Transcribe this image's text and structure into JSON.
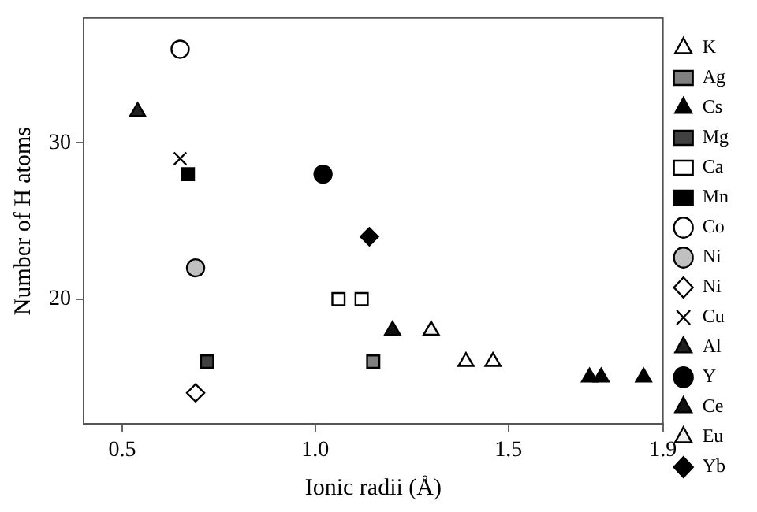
{
  "chart_data": {
    "type": "scatter",
    "xlabel": "Ionic radii (Å)",
    "ylabel": "Number of H atoms",
    "xlim": [
      0.4,
      1.9
    ],
    "xticks": [
      {
        "value": 0.5,
        "label": "0.5"
      },
      {
        "value": 1.0,
        "label": "1.0"
      },
      {
        "value": 1.5,
        "label": "1.5"
      },
      {
        "value": 1.9,
        "label": "1.9"
      }
    ],
    "ylim": [
      12,
      38
    ],
    "yticks": [
      20,
      30
    ],
    "grid": false,
    "legend": "right",
    "series": [
      {
        "name": "K",
        "marker": "triangle",
        "color": "#ffffff",
        "x": [
          1.39,
          1.46
        ],
        "values": [
          16,
          16
        ]
      },
      {
        "name": "Ag",
        "marker": "square",
        "color": "#808080",
        "x": [
          1.15
        ],
        "values": [
          16
        ]
      },
      {
        "name": "Cs",
        "marker": "triangle",
        "color": "#000000",
        "x": [
          1.71,
          1.74,
          1.85
        ],
        "values": [
          15,
          15,
          15
        ]
      },
      {
        "name": "Mg",
        "marker": "square",
        "color": "#404040",
        "x": [
          0.72
        ],
        "values": [
          16
        ]
      },
      {
        "name": "Ca",
        "marker": "square",
        "color": "#ffffff",
        "x": [
          1.06,
          1.12
        ],
        "values": [
          20,
          20
        ]
      },
      {
        "name": "Mn",
        "marker": "square",
        "color": "#000000",
        "x": [
          0.67
        ],
        "values": [
          28
        ]
      },
      {
        "name": "Co",
        "marker": "circle",
        "color": "#ffffff",
        "x": [
          0.65
        ],
        "values": [
          36
        ]
      },
      {
        "name": "Ni",
        "marker": "circle",
        "color": "#c0c0c0",
        "x": [
          0.69
        ],
        "values": [
          22
        ]
      },
      {
        "name": "Ni",
        "marker": "diamond",
        "color": "#ffffff",
        "x": [
          0.69
        ],
        "values": [
          14
        ]
      },
      {
        "name": "Cu",
        "marker": "cross",
        "color": "#000000",
        "x": [
          0.65
        ],
        "values": [
          29
        ]
      },
      {
        "name": "Al",
        "marker": "triangle",
        "color": "#202020",
        "x": [
          0.54
        ],
        "values": [
          32
        ]
      },
      {
        "name": "Y",
        "marker": "circle",
        "color": "#000000",
        "x": [
          1.02
        ],
        "values": [
          28
        ]
      },
      {
        "name": "Ce",
        "marker": "triangle",
        "color": "#101010",
        "x": [
          1.2
        ],
        "values": [
          18
        ]
      },
      {
        "name": "Eu",
        "marker": "triangle",
        "color": "#f0f0f0",
        "x": [
          1.3
        ],
        "values": [
          18
        ]
      },
      {
        "name": "Yb",
        "marker": "diamond",
        "color": "#000000",
        "x": [
          1.14
        ],
        "values": [
          24
        ]
      }
    ]
  }
}
